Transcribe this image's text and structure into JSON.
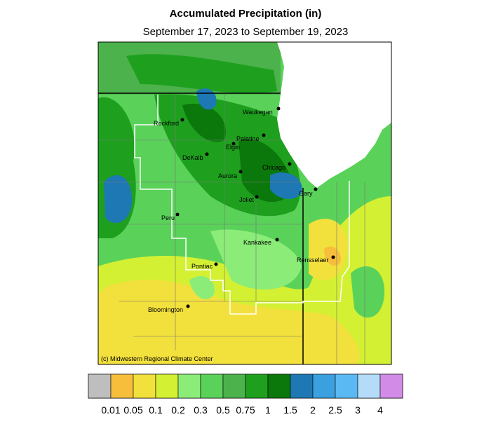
{
  "header": {
    "title": "Accumulated Precipitation (in)",
    "subtitle": "September 17, 2023 to September 19, 2023"
  },
  "map": {
    "cities": [
      "Waukegan",
      "Rockford",
      "Palatine",
      "Elgin",
      "DeKalb",
      "Chicago",
      "Aurora",
      "Gary",
      "Joliet",
      "Peru",
      "Kankakee",
      "Rensselaer",
      "Pontiac",
      "Bloomington"
    ],
    "credit": "(c) Midwestern Regional Climate Center"
  },
  "legend": {
    "colors": [
      "#bebebe",
      "#f7be3c",
      "#f2e03c",
      "#d4f032",
      "#8cec78",
      "#5ad25a",
      "#4cb24c",
      "#1ea01e",
      "#0a780a",
      "#1e78b4",
      "#3aa0e0",
      "#5ab9f2",
      "#b4dcf8",
      "#d28ce8"
    ],
    "labels": [
      "0.01",
      "0.05",
      "0.1",
      "0.2",
      "0.3",
      "0.5",
      "0.75",
      "1",
      "1.5",
      "2",
      "2.5",
      "3",
      "4"
    ]
  }
}
